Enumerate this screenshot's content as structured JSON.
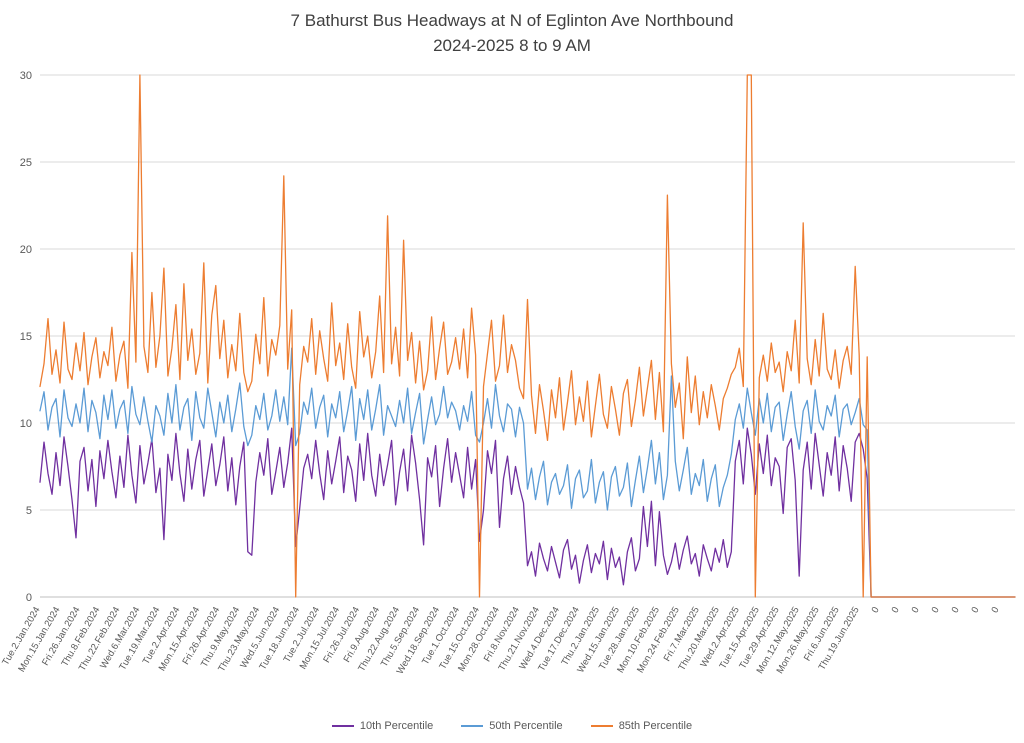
{
  "chart_data": {
    "type": "line",
    "title": "7 Bathurst Bus Headways at N of Eglinton Ave Northbound",
    "subtitle": "2024-2025 8 to 9 AM",
    "xlabel": "",
    "ylabel": "",
    "ylim": [
      0,
      30
    ],
    "yticks": [
      0,
      5,
      10,
      15,
      20,
      25,
      30
    ],
    "grid": "horizontal",
    "legend_position": "bottom",
    "tick_interval": 5,
    "x_tick_labels": [
      "Tue.2.Jan.2024",
      "Mon.15.Jan.2024",
      "Fri.26.Jan.2024",
      "Thu.8.Feb.2024",
      "Thu.22.Feb.2024",
      "Wed.6.Mar.2024",
      "Tue.19.Mar.2024",
      "Tue.2.Apr.2024",
      "Mon.15.Apr.2024",
      "Fri.26.Apr.2024",
      "Thu.9.May.2024",
      "Thu.23.May.2024",
      "Wed.5.Jun.2024",
      "Tue.18.Jun.2024",
      "Tue.2.Jul.2024",
      "Mon.15.Jul.2024",
      "Fri.26.Jul.2024",
      "Fri.9.Aug.2024",
      "Thu.22.Aug.2024",
      "Thu.5.Sep.2024",
      "Wed.18.Sep.2024",
      "Tue.1.Oct.2024",
      "Tue.15.Oct.2024",
      "Mon.28.Oct.2024",
      "Fri.8.Nov.2024",
      "Thu.21.Nov.2024",
      "Wed.4.Dec.2024",
      "Tue.17.Dec.2024",
      "Thu.2.Jan.2025",
      "Wed.15.Jan.2025",
      "Tue.28.Jan.2025",
      "Mon.10.Feb.2025",
      "Mon.24.Feb.2025",
      "Fri.7.Mar.2025",
      "Thu.20.Mar.2025",
      "Wed.2.Apr.2025",
      "Tue.15.Apr.2025",
      "Tue.29.Apr.2025",
      "Mon.12.May.2025",
      "Mon.26.May.2025",
      "Fri.6.Jun.2025",
      "Thu.19.Jun.2025",
      "0",
      "0",
      "0",
      "0",
      "0",
      "0",
      "0"
    ],
    "series": [
      {
        "name": "10th Percentile",
        "color": "#7030A0",
        "values": [
          6.6,
          8.9,
          7.1,
          5.9,
          8.3,
          6.4,
          9.2,
          7.5,
          5.6,
          3.4,
          7.8,
          8.6,
          6.1,
          7.9,
          5.2,
          8.4,
          6.8,
          9.0,
          7.2,
          5.7,
          8.1,
          6.3,
          9.3,
          7.0,
          5.4,
          8.7,
          6.5,
          7.7,
          9.1,
          6.0,
          7.4,
          3.3,
          8.2,
          6.7,
          9.4,
          7.1,
          5.5,
          8.5,
          6.2,
          7.9,
          9.0,
          5.8,
          7.3,
          8.8,
          6.4,
          7.6,
          9.2,
          6.1,
          8.0,
          5.3,
          7.5,
          8.9,
          2.6,
          2.4,
          6.6,
          8.3,
          7.0,
          9.1,
          5.9,
          7.2,
          8.6,
          6.3,
          7.7,
          9.7,
          2.9,
          5.1,
          7.4,
          8.2,
          6.8,
          9.0,
          7.1,
          5.6,
          8.4,
          6.5,
          7.8,
          9.2,
          6.0,
          8.1,
          7.3,
          5.5,
          8.8,
          6.7,
          9.4,
          7.0,
          5.8,
          8.2,
          6.4,
          7.6,
          9.0,
          5.3,
          7.2,
          8.5,
          6.1,
          9.3,
          7.7,
          5.6,
          3.0,
          8.0,
          6.9,
          8.7,
          5.2,
          7.4,
          9.1,
          6.6,
          8.3,
          7.0,
          5.7,
          8.6,
          6.2,
          7.9,
          3.2,
          5.0,
          8.4,
          7.1,
          9.0,
          4.0,
          6.8,
          8.1,
          5.9,
          7.5,
          6.3,
          5.4,
          1.8,
          2.6,
          1.2,
          3.1,
          2.2,
          1.5,
          2.9,
          2.0,
          1.1,
          2.7,
          3.3,
          1.6,
          2.4,
          0.8,
          2.1,
          3.0,
          1.4,
          2.5,
          1.9,
          3.2,
          1.0,
          2.8,
          1.7,
          2.3,
          0.7,
          2.6,
          3.4,
          1.5,
          2.2,
          5.2,
          2.9,
          5.5,
          1.8,
          4.9,
          2.4,
          1.3,
          2.0,
          3.1,
          1.6,
          2.7,
          3.5,
          1.9,
          2.5,
          1.2,
          3.0,
          2.2,
          1.5,
          2.8,
          2.0,
          3.3,
          1.7,
          2.6,
          7.8,
          9.0,
          6.5,
          9.7,
          8.2,
          5.9,
          8.8,
          7.1,
          9.3,
          6.4,
          8.0,
          7.5,
          4.8,
          8.6,
          9.1,
          6.7,
          1.2,
          7.3,
          8.9,
          6.2,
          9.4,
          7.6,
          5.8,
          8.3,
          7.0,
          9.2,
          6.1,
          8.7,
          7.4,
          5.5,
          8.9,
          9.4,
          8.5,
          6.8,
          0,
          0,
          0,
          0,
          0,
          0,
          0,
          0,
          0,
          0,
          0,
          0,
          0,
          0,
          0,
          0,
          0,
          0,
          0,
          0,
          0,
          0,
          0,
          0,
          0,
          0,
          0,
          0,
          0,
          0,
          0,
          0,
          0,
          0,
          0,
          0,
          0
        ]
      },
      {
        "name": "50th Percentile",
        "color": "#5B9BD5",
        "values": [
          10.7,
          11.8,
          9.6,
          10.9,
          11.4,
          9.2,
          11.9,
          10.3,
          9.8,
          11.1,
          10.0,
          12.0,
          9.5,
          11.3,
          10.6,
          9.1,
          11.6,
          10.2,
          11.9,
          9.7,
          10.8,
          11.3,
          9.4,
          12.1,
          10.5,
          9.9,
          11.5,
          10.1,
          8.9,
          11.0,
          10.4,
          9.3,
          11.7,
          10.0,
          12.2,
          9.6,
          10.9,
          11.4,
          9.0,
          11.8,
          10.3,
          9.7,
          12.0,
          10.6,
          9.2,
          11.2,
          10.0,
          11.6,
          9.5,
          10.8,
          12.3,
          9.8,
          8.7,
          9.3,
          11.0,
          10.2,
          11.7,
          9.6,
          10.4,
          11.9,
          10.1,
          11.5,
          9.9,
          14.3,
          8.7,
          9.4,
          11.2,
          10.5,
          12.0,
          9.7,
          10.9,
          11.6,
          9.2,
          11.1,
          10.3,
          11.8,
          9.5,
          10.7,
          12.1,
          9.0,
          11.4,
          10.2,
          11.9,
          9.6,
          10.8,
          12.2,
          9.3,
          11.0,
          10.4,
          9.8,
          11.3,
          10.0,
          12.0,
          9.4,
          10.6,
          11.7,
          8.8,
          10.2,
          11.5,
          9.9,
          10.5,
          12.1,
          10.3,
          11.2,
          10.7,
          9.6,
          11.0,
          10.1,
          11.8,
          9.3,
          8.9,
          10.0,
          11.4,
          9.7,
          12.2,
          10.4,
          9.5,
          11.1,
          10.8,
          9.2,
          10.9,
          10.0,
          6.2,
          7.4,
          5.6,
          6.9,
          7.8,
          5.3,
          6.6,
          7.1,
          5.9,
          6.4,
          7.6,
          5.1,
          6.8,
          7.3,
          5.7,
          6.1,
          7.9,
          5.4,
          6.6,
          7.2,
          5.0,
          6.9,
          7.5,
          5.8,
          6.3,
          7.7,
          5.2,
          6.7,
          8.1,
          6.0,
          7.4,
          9.0,
          6.5,
          8.3,
          5.6,
          7.0,
          12.7,
          7.8,
          6.1,
          7.3,
          8.6,
          5.9,
          7.1,
          6.4,
          7.9,
          5.5,
          6.8,
          7.6,
          5.2,
          6.3,
          7.0,
          8.2,
          10.2,
          11.1,
          9.7,
          12.0,
          10.6,
          9.3,
          11.4,
          10.0,
          11.7,
          9.5,
          10.9,
          11.2,
          9.0,
          10.5,
          11.8,
          9.8,
          8.5,
          10.7,
          11.3,
          9.4,
          11.9,
          10.1,
          9.6,
          11.0,
          10.4,
          11.6,
          9.2,
          10.8,
          11.1,
          9.9,
          10.6,
          11.4,
          9.9,
          9.6,
          0,
          0,
          0,
          0,
          0,
          0,
          0,
          0,
          0,
          0,
          0,
          0,
          0,
          0,
          0,
          0,
          0,
          0,
          0,
          0,
          0,
          0,
          0,
          0,
          0,
          0,
          0,
          0,
          0,
          0,
          0,
          0,
          0,
          0,
          0,
          0,
          0
        ]
      },
      {
        "name": "85th Percentile",
        "color": "#ED7D31",
        "values": [
          12.1,
          13.4,
          16.0,
          12.8,
          14.2,
          12.3,
          15.8,
          13.1,
          12.5,
          14.6,
          13.0,
          15.2,
          12.2,
          13.8,
          14.9,
          12.6,
          14.1,
          13.3,
          15.5,
          12.4,
          13.9,
          14.7,
          12.0,
          19.8,
          13.5,
          30.0,
          14.4,
          12.9,
          17.5,
          13.2,
          15.0,
          18.9,
          12.7,
          14.3,
          16.8,
          12.5,
          18.0,
          13.6,
          15.4,
          12.8,
          14.0,
          19.2,
          12.3,
          16.2,
          17.9,
          13.7,
          15.9,
          12.6,
          14.5,
          13.0,
          16.3,
          12.9,
          11.8,
          12.4,
          15.1,
          13.4,
          17.2,
          12.7,
          14.8,
          13.9,
          15.6,
          24.2,
          13.1,
          16.5,
          0.0,
          12.2,
          14.4,
          13.5,
          16.0,
          12.8,
          15.3,
          13.7,
          12.4,
          16.9,
          13.3,
          14.6,
          12.5,
          15.7,
          13.2,
          12.0,
          16.4,
          13.8,
          15.0,
          12.6,
          14.1,
          17.3,
          12.9,
          21.9,
          13.4,
          15.5,
          12.7,
          20.5,
          13.6,
          15.2,
          12.3,
          14.7,
          11.9,
          13.0,
          16.1,
          12.5,
          14.3,
          15.8,
          12.8,
          13.5,
          14.9,
          13.1,
          15.4,
          12.6,
          16.6,
          13.9,
          0.0,
          12.1,
          14.0,
          15.9,
          12.4,
          13.3,
          16.2,
          12.9,
          14.5,
          13.6,
          12.0,
          11.4,
          17.1,
          11.6,
          9.4,
          12.2,
          10.7,
          9.0,
          11.9,
          10.3,
          12.6,
          9.6,
          11.2,
          13.0,
          9.9,
          11.5,
          10.1,
          12.4,
          9.2,
          11.0,
          12.8,
          10.5,
          9.7,
          12.1,
          10.8,
          9.3,
          11.7,
          12.5,
          9.8,
          11.3,
          13.2,
          10.4,
          12.0,
          13.6,
          10.2,
          12.9,
          9.5,
          23.1,
          13.4,
          10.9,
          12.3,
          9.1,
          13.8,
          10.6,
          12.7,
          9.9,
          11.8,
          10.3,
          12.2,
          11.0,
          9.6,
          11.4,
          12.0,
          12.8,
          13.2,
          14.3,
          12.1,
          30.0,
          30.0,
          0.0,
          12.6,
          13.9,
          12.4,
          14.6,
          12.9,
          13.5,
          11.8,
          14.1,
          13.0,
          15.9,
          12.3,
          21.5,
          13.7,
          12.2,
          14.8,
          12.7,
          16.3,
          13.1,
          12.5,
          14.2,
          12.0,
          13.6,
          14.4,
          12.8,
          19.0,
          13.9,
          0.0,
          13.8,
          0,
          0,
          0,
          0,
          0,
          0,
          0,
          0,
          0,
          0,
          0,
          0,
          0,
          0,
          0,
          0,
          0,
          0,
          0,
          0,
          0,
          0,
          0,
          0,
          0,
          0,
          0,
          0,
          0,
          0,
          0,
          0,
          0,
          0,
          0,
          0,
          0
        ]
      }
    ]
  },
  "colors": {
    "title_text": "#404040",
    "axis_text": "#595959",
    "gridline": "#d9d9d9",
    "axis_line": "#bfbfbf",
    "background": "#ffffff"
  }
}
